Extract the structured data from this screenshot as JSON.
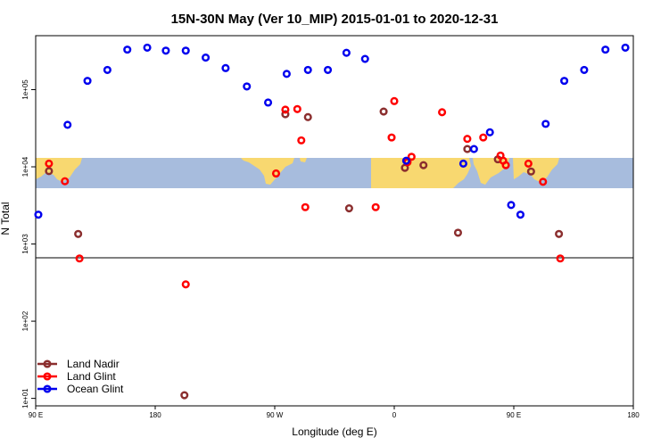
{
  "chart_data": {
    "type": "scatter",
    "title": "15N-30N May (Ver 10_MIP)   2015-01-01 to 2020-12-31",
    "xlabel": "Longitude (deg E)",
    "ylabel": "N Total",
    "x_axis_span_deg": [
      0,
      360
    ],
    "x_ticks": [
      {
        "pos": 0,
        "label": "90 E"
      },
      {
        "pos": 90,
        "label": "180"
      },
      {
        "pos": 180,
        "label": "90 W"
      },
      {
        "pos": 270,
        "label": "0"
      },
      {
        "pos": 360,
        "label": "90 E"
      },
      {
        "pos": 450,
        "label": "180"
      }
    ],
    "x_axis_range": [
      0,
      450
    ],
    "y_scale": "log",
    "ylim": [
      8,
      500000
    ],
    "y_ticks": [
      {
        "value": 10,
        "label": "1e+01"
      },
      {
        "value": 100,
        "label": "1e+02"
      },
      {
        "value": 1000,
        "label": "1e+03"
      },
      {
        "value": 10000,
        "label": "1e+04"
      },
      {
        "value": 100000,
        "label": "1e+05"
      }
    ],
    "background": "world map strip (longitude 90E to 180E, latitude band 15N-30N) drawn behind the upper panel",
    "legend_position": "bottom-left",
    "series": [
      {
        "name": "Land Nadir",
        "color": "#8b2e2e",
        "points": [
          {
            "x": 10,
            "y": 8800
          },
          {
            "x": 32,
            "y": 1350
          },
          {
            "x": 112,
            "y": 11
          },
          {
            "x": 188,
            "y": 48000
          },
          {
            "x": 205,
            "y": 44000
          },
          {
            "x": 236,
            "y": 2900
          },
          {
            "x": 318,
            "y": 1400
          },
          {
            "x": 262,
            "y": 52000
          },
          {
            "x": 278,
            "y": 9700
          },
          {
            "x": 292,
            "y": 10500
          },
          {
            "x": 325,
            "y": 17000
          },
          {
            "x": 348,
            "y": 12500
          },
          {
            "x": 373,
            "y": 8700
          },
          {
            "x": 394,
            "y": 1350
          }
        ]
      },
      {
        "name": "Land Glint",
        "color": "#ff0000",
        "points": [
          {
            "x": 10,
            "y": 11000
          },
          {
            "x": 22,
            "y": 6500
          },
          {
            "x": 33,
            "y": 650
          },
          {
            "x": 113,
            "y": 300
          },
          {
            "x": 181,
            "y": 8200
          },
          {
            "x": 188,
            "y": 55000
          },
          {
            "x": 197,
            "y": 56000
          },
          {
            "x": 200,
            "y": 22000
          },
          {
            "x": 350,
            "y": 14000
          },
          {
            "x": 203,
            "y": 3000
          },
          {
            "x": 256,
            "y": 3000
          },
          {
            "x": 268,
            "y": 24000
          },
          {
            "x": 270,
            "y": 71000
          },
          {
            "x": 280,
            "y": 11500
          },
          {
            "x": 283,
            "y": 13500
          },
          {
            "x": 306,
            "y": 51000
          },
          {
            "x": 325,
            "y": 23000
          },
          {
            "x": 337,
            "y": 24000
          },
          {
            "x": 352,
            "y": 12000
          },
          {
            "x": 354,
            "y": 10500
          },
          {
            "x": 371,
            "y": 11000
          },
          {
            "x": 382,
            "y": 6400
          },
          {
            "x": 395,
            "y": 650
          }
        ]
      },
      {
        "name": "Ocean Glint",
        "color": "#0000ee",
        "points": [
          {
            "x": 2,
            "y": 2400
          },
          {
            "x": 24,
            "y": 35000
          },
          {
            "x": 39,
            "y": 130000
          },
          {
            "x": 54,
            "y": 180000
          },
          {
            "x": 69,
            "y": 330000
          },
          {
            "x": 84,
            "y": 350000
          },
          {
            "x": 98,
            "y": 320000
          },
          {
            "x": 113,
            "y": 320000
          },
          {
            "x": 128,
            "y": 260000
          },
          {
            "x": 143,
            "y": 190000
          },
          {
            "x": 159,
            "y": 110000
          },
          {
            "x": 175,
            "y": 68000
          },
          {
            "x": 189,
            "y": 160000
          },
          {
            "x": 205,
            "y": 180000
          },
          {
            "x": 220,
            "y": 180000
          },
          {
            "x": 234,
            "y": 300000
          },
          {
            "x": 248,
            "y": 250000
          },
          {
            "x": 279,
            "y": 12000
          },
          {
            "x": 322,
            "y": 11000
          },
          {
            "x": 330,
            "y": 17000
          },
          {
            "x": 342,
            "y": 28000
          },
          {
            "x": 358,
            "y": 3200
          },
          {
            "x": 365,
            "y": 2400
          },
          {
            "x": 384,
            "y": 36000
          },
          {
            "x": 398,
            "y": 130000
          },
          {
            "x": 413,
            "y": 180000
          },
          {
            "x": 429,
            "y": 330000
          },
          {
            "x": 444,
            "y": 350000
          }
        ]
      }
    ]
  }
}
